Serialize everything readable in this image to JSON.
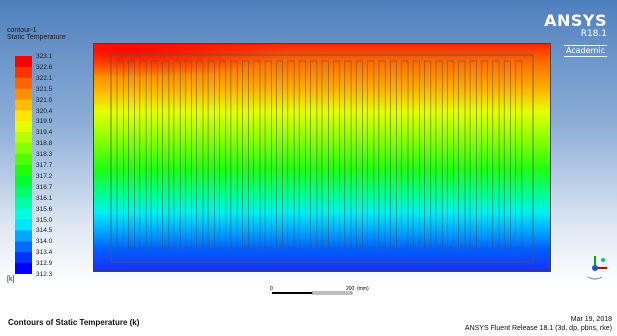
{
  "contour": {
    "name": "contour-1",
    "field": "Static Temperature",
    "unit": "[k]"
  },
  "legend": {
    "levels": [
      "323.1",
      "322.6",
      "322.1",
      "321.5",
      "321.0",
      "320.4",
      "319.9",
      "319.4",
      "318.8",
      "318.3",
      "317.7",
      "317.2",
      "316.7",
      "316.1",
      "315.6",
      "315.0",
      "314.5",
      "314.0",
      "313.4",
      "312.9",
      "312.3"
    ],
    "colors": [
      "#ff0000",
      "#ff3300",
      "#ff6400",
      "#ff8f00",
      "#ffbb00",
      "#ffe600",
      "#e3ff00",
      "#b4ff00",
      "#82ff00",
      "#50ff00",
      "#1fff00",
      "#00ff2c",
      "#00ff6a",
      "#00ffa6",
      "#00ffdc",
      "#00e5ff",
      "#00a8ff",
      "#006dff",
      "#0033ff",
      "#0000ff"
    ]
  },
  "logo": {
    "brand": "ANSYS",
    "release": "R18.1",
    "edition": "Academic"
  },
  "scale_bar": {
    "start_label": "0",
    "end_label": "200",
    "unit": "(mm)"
  },
  "footer": {
    "title": "Contours of Static Temperature (k)",
    "date": "Mar 19, 2018",
    "release": "ANSYS Fluent Release 18.1 (3d, dp, pbns, rke)"
  }
}
